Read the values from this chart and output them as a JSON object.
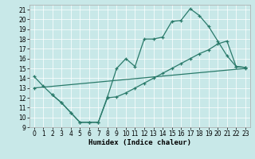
{
  "bg_color": "#c8e8e8",
  "line_color": "#2a7a6a",
  "xlabel": "Humidex (Indice chaleur)",
  "line1_x": [
    0,
    1,
    2,
    3,
    4,
    5,
    6,
    7,
    8,
    9,
    10,
    11,
    12,
    13,
    14,
    15,
    16,
    17,
    18,
    19,
    20,
    21,
    22,
    23
  ],
  "line1_y": [
    14.2,
    13.2,
    12.3,
    11.5,
    10.5,
    9.5,
    9.5,
    9.5,
    12.1,
    15.0,
    16.0,
    15.2,
    18.0,
    18.0,
    18.2,
    19.8,
    19.9,
    21.1,
    20.4,
    19.3,
    17.8,
    16.3,
    15.2,
    15.1
  ],
  "line2_x": [
    2,
    3,
    4,
    5,
    6,
    7,
    8,
    9,
    10,
    11,
    12,
    13,
    14,
    15,
    16,
    17,
    18,
    19,
    20,
    21,
    22,
    23
  ],
  "line2_y": [
    12.3,
    11.5,
    10.5,
    9.5,
    9.5,
    9.5,
    12.0,
    12.1,
    12.5,
    13.0,
    13.5,
    14.0,
    14.5,
    15.0,
    15.5,
    16.0,
    16.5,
    16.9,
    17.5,
    17.8,
    15.2,
    15.1
  ],
  "line3_x": [
    0,
    23
  ],
  "line3_y": [
    13.0,
    15.0
  ],
  "xlim": [
    -0.5,
    23.5
  ],
  "ylim": [
    9,
    21.5
  ],
  "xticks": [
    0,
    1,
    2,
    3,
    4,
    5,
    6,
    7,
    8,
    9,
    10,
    11,
    12,
    13,
    14,
    15,
    16,
    17,
    18,
    19,
    20,
    21,
    22,
    23
  ],
  "yticks": [
    9,
    10,
    11,
    12,
    13,
    14,
    15,
    16,
    17,
    18,
    19,
    20,
    21
  ],
  "tick_fontsize": 5.5,
  "xlabel_fontsize": 6.5
}
